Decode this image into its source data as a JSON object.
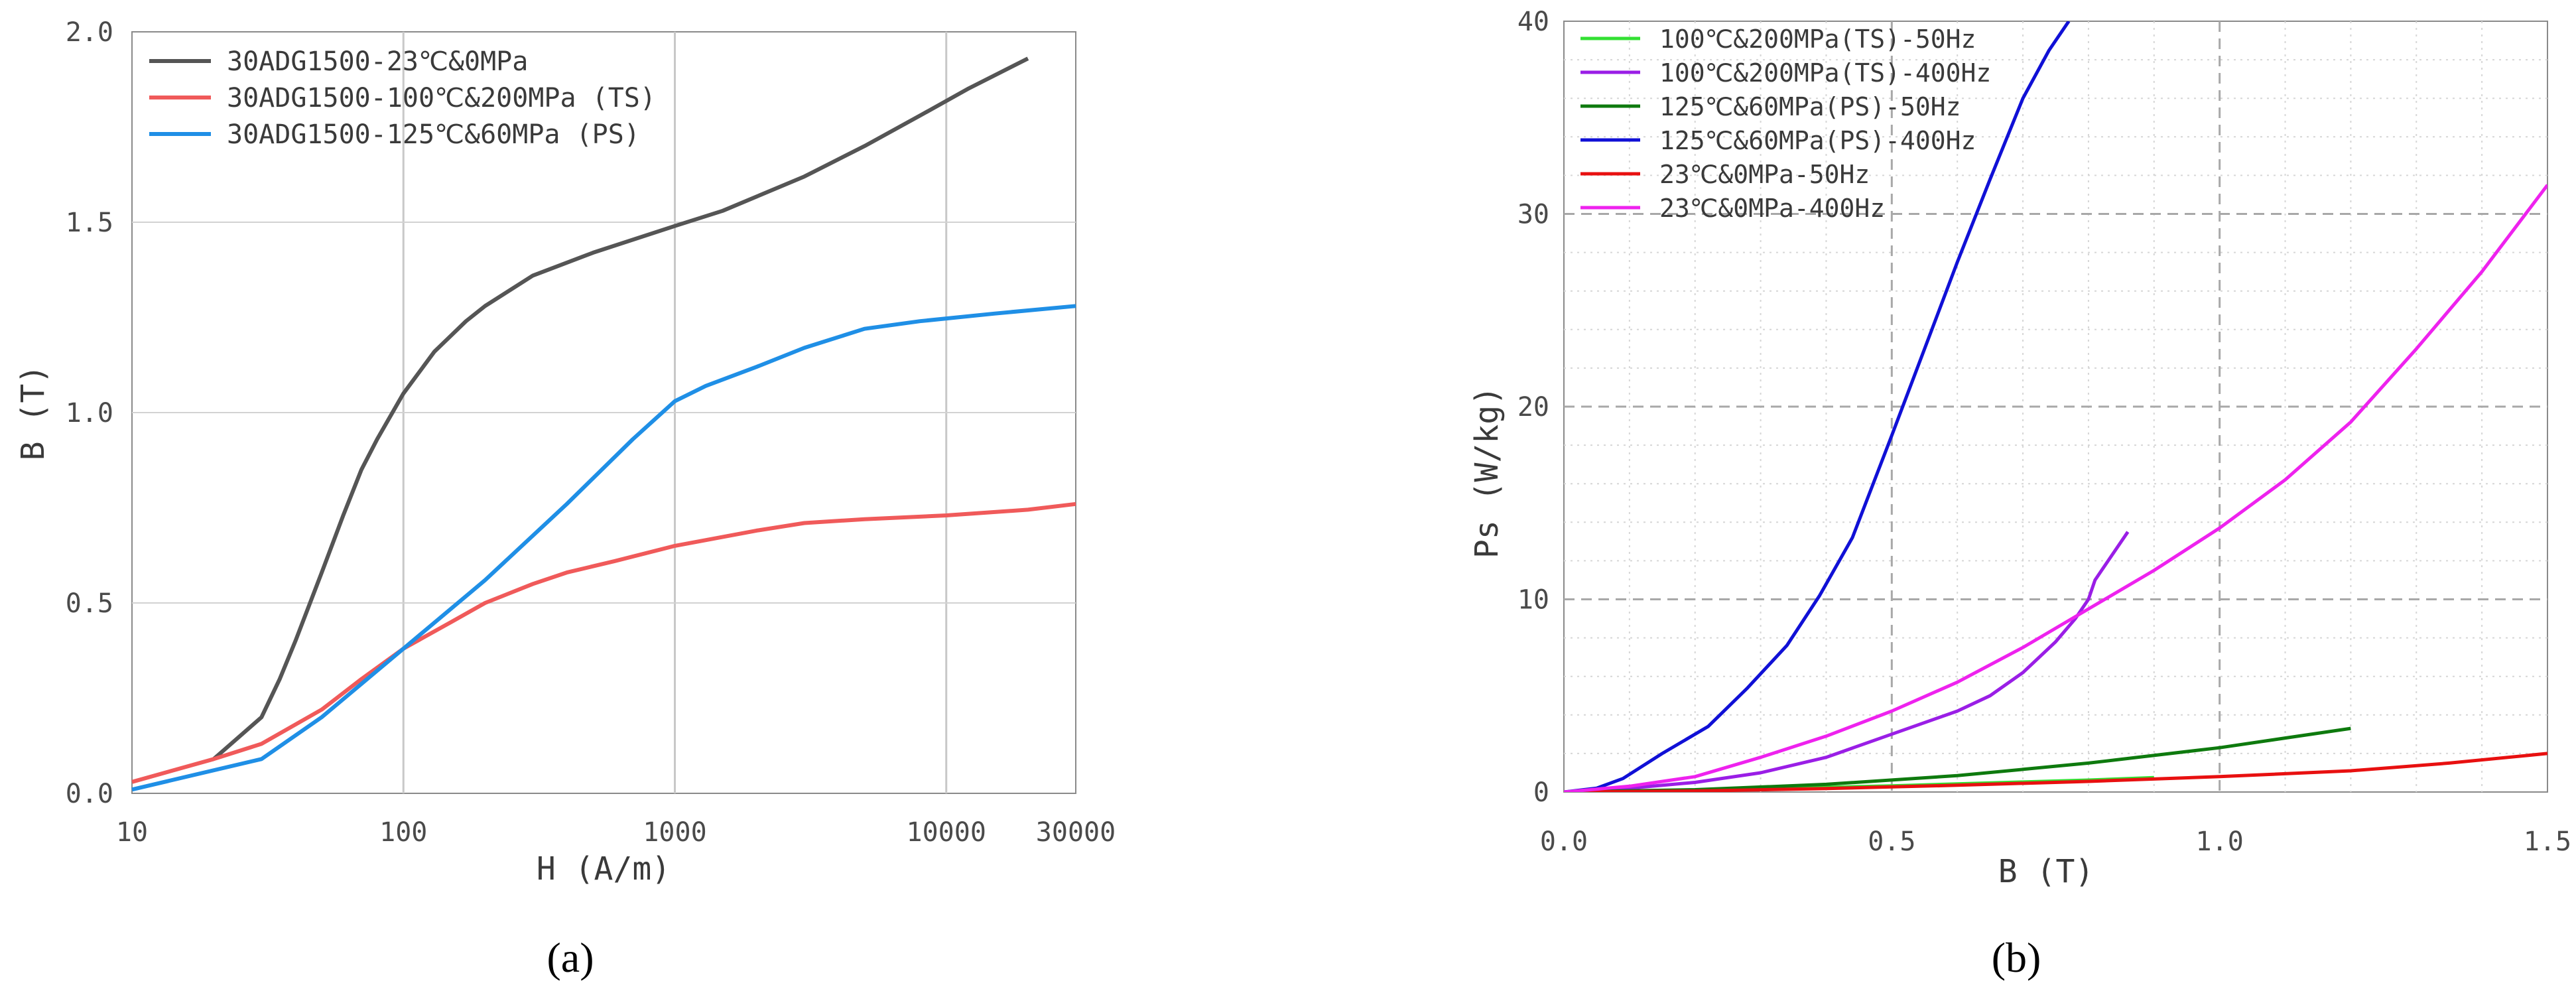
{
  "chart_data": [
    {
      "type": "line",
      "panel_label": "(a)",
      "xlabel": "H (A/m)",
      "ylabel": "B (T)",
      "xscale": "log",
      "xlim": [
        10,
        30000
      ],
      "ylim": [
        0,
        2.0
      ],
      "xticks": [
        10,
        100,
        1000,
        10000,
        30000
      ],
      "xtick_labels": [
        "10",
        "100",
        "1000",
        "10000",
        "30000"
      ],
      "yticks": [
        0,
        0.5,
        1.0,
        1.5,
        2.0
      ],
      "ytick_labels": [
        "0.0",
        "0.5",
        "1.0",
        "1.5",
        "2.0"
      ],
      "grid": true,
      "legend_position": "top-left",
      "series": [
        {
          "name": "30ADG1500-23℃&0MPa",
          "color": "#555555",
          "x": [
            20,
            30,
            35,
            40,
            50,
            60,
            70,
            80,
            100,
            130,
            170,
            200,
            300,
            500,
            1000,
            1500,
            3000,
            5000,
            8000,
            12000,
            20000
          ],
          "y": [
            0.09,
            0.2,
            0.3,
            0.4,
            0.58,
            0.73,
            0.85,
            0.93,
            1.05,
            1.16,
            1.24,
            1.28,
            1.36,
            1.42,
            1.49,
            1.53,
            1.62,
            1.7,
            1.78,
            1.85,
            1.93
          ]
        },
        {
          "name": "30ADG1500-100℃&200MPa (TS)",
          "color": "#f05a5a",
          "x": [
            10,
            20,
            30,
            50,
            70,
            100,
            150,
            200,
            300,
            400,
            600,
            1000,
            2000,
            3000,
            5000,
            10000,
            20000,
            30000
          ],
          "y": [
            0.03,
            0.09,
            0.13,
            0.22,
            0.3,
            0.38,
            0.45,
            0.5,
            0.55,
            0.58,
            0.61,
            0.65,
            0.69,
            0.71,
            0.72,
            0.73,
            0.745,
            0.76
          ]
        },
        {
          "name": "30ADG1500-125℃&60MPa (PS)",
          "color": "#1f8fe6",
          "x": [
            10,
            30,
            50,
            100,
            200,
            400,
            700,
            1000,
            1300,
            2000,
            3000,
            5000,
            8000,
            15000,
            30000
          ],
          "y": [
            0.01,
            0.09,
            0.2,
            0.38,
            0.56,
            0.76,
            0.93,
            1.03,
            1.07,
            1.12,
            1.17,
            1.22,
            1.24,
            1.26,
            1.28
          ]
        }
      ]
    },
    {
      "type": "line",
      "panel_label": "(b)",
      "xlabel": "B (T)",
      "ylabel": "Ps (W/kg)",
      "xlim": [
        0,
        1.5
      ],
      "ylim": [
        0,
        40
      ],
      "xticks": [
        0,
        0.5,
        1.0,
        1.5
      ],
      "xtick_labels": [
        "0.0",
        "0.5",
        "1.0",
        "1.5"
      ],
      "yticks": [
        0,
        10,
        20,
        30,
        40
      ],
      "ytick_labels": [
        "0",
        "10",
        "20",
        "30",
        "40"
      ],
      "grid": true,
      "legend_position": "top-left",
      "series": [
        {
          "name": "100℃&200MPa(TS)-50Hz",
          "color": "#33e033",
          "x": [
            0,
            0.1,
            0.2,
            0.3,
            0.4,
            0.5,
            0.6,
            0.7,
            0.8,
            0.9
          ],
          "y": [
            0,
            0.04,
            0.1,
            0.16,
            0.24,
            0.32,
            0.42,
            0.52,
            0.62,
            0.75
          ]
        },
        {
          "name": "100℃&200MPa(TS)-400Hz",
          "color": "#9a1ee6",
          "x": [
            0,
            0.1,
            0.2,
            0.3,
            0.4,
            0.5,
            0.6,
            0.65,
            0.7,
            0.75,
            0.78,
            0.8,
            0.81,
            0.83,
            0.86
          ],
          "y": [
            0,
            0.2,
            0.5,
            1.0,
            1.8,
            3.0,
            4.2,
            5.0,
            6.2,
            7.8,
            9.0,
            10.0,
            11.0,
            12.0,
            13.5
          ]
        },
        {
          "name": "125℃&60MPa(PS)-50Hz",
          "color": "#0e7a0e",
          "x": [
            0,
            0.2,
            0.4,
            0.6,
            0.8,
            1.0,
            1.2
          ],
          "y": [
            0,
            0.12,
            0.4,
            0.85,
            1.5,
            2.3,
            3.3
          ]
        },
        {
          "name": "125℃&60MPa(PS)-400Hz",
          "color": "#1010d6",
          "x": [
            0,
            0.05,
            0.09,
            0.15,
            0.22,
            0.28,
            0.34,
            0.39,
            0.44,
            0.5,
            0.55,
            0.6,
            0.65,
            0.7,
            0.74,
            0.77
          ],
          "y": [
            0,
            0.2,
            0.7,
            2.0,
            3.4,
            5.4,
            7.6,
            10.2,
            13.2,
            18.5,
            23.0,
            27.5,
            31.8,
            36.0,
            38.5,
            40.0
          ]
        },
        {
          "name": "23℃&0MPa-50Hz",
          "color": "#e81010",
          "x": [
            0,
            0.2,
            0.4,
            0.6,
            0.8,
            1.0,
            1.2,
            1.35,
            1.5
          ],
          "y": [
            0,
            0.05,
            0.18,
            0.35,
            0.55,
            0.8,
            1.1,
            1.5,
            2.0
          ]
        },
        {
          "name": "23℃&0MPa-400Hz",
          "color": "#ee22ee",
          "x": [
            0,
            0.1,
            0.2,
            0.3,
            0.4,
            0.5,
            0.6,
            0.7,
            0.8,
            0.9,
            1.0,
            1.1,
            1.2,
            1.3,
            1.4,
            1.5
          ],
          "y": [
            0,
            0.3,
            0.8,
            1.8,
            2.9,
            4.2,
            5.7,
            7.5,
            9.5,
            11.5,
            13.7,
            16.2,
            19.2,
            23.0,
            27.0,
            31.5
          ]
        }
      ]
    }
  ]
}
